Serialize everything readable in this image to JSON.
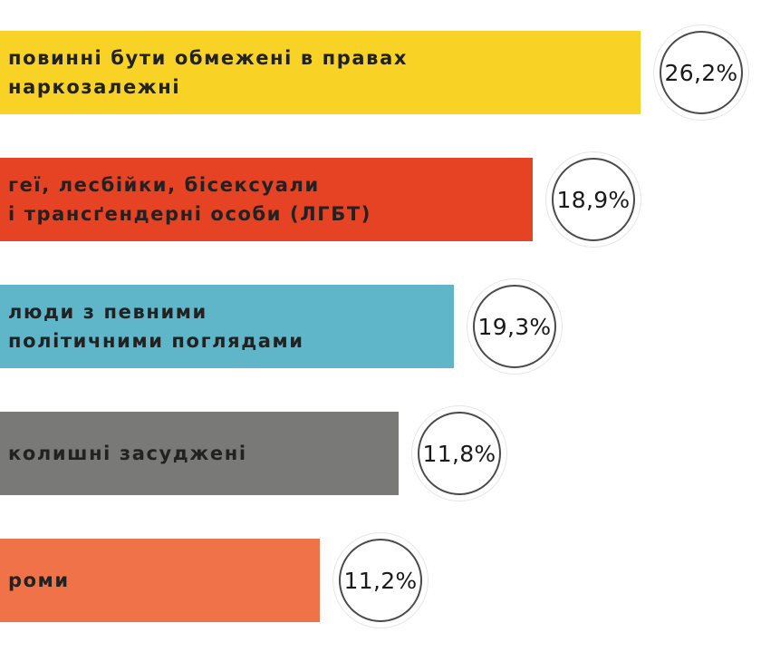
{
  "chart_data": {
    "type": "bar",
    "orientation": "horizontal",
    "categories": [
      "повинні бути обмежені в правах\nнаркозалежні",
      "геї, лесбійки, бісексуали\nі трансґендерні особи (ЛГБТ)",
      "люди з певними\nполітичними поглядами",
      "колишні засуджені",
      "роми"
    ],
    "values": [
      26.2,
      18.9,
      19.3,
      11.8,
      11.2
    ],
    "value_labels": [
      "26,2%",
      "18,9%",
      "19,3%",
      "11,8%",
      "11,2%"
    ],
    "bar_colors": [
      "#f9d226",
      "#e64325",
      "#5fb6c9",
      "#797a77",
      "#ef7248"
    ],
    "label_color": "#222222",
    "badge_border_color": "#4a4a4a",
    "grid": false
  }
}
